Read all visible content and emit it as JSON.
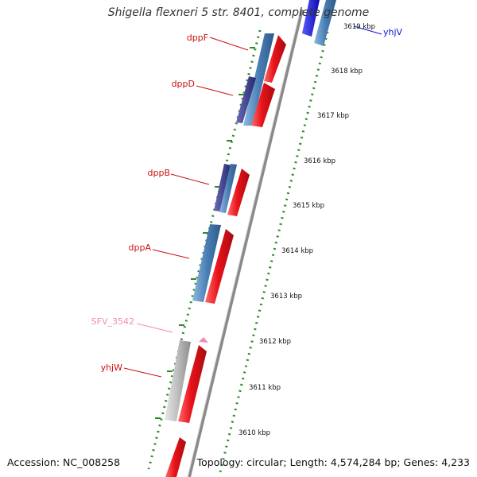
{
  "title": "Shigella flexneri 5 str. 8401, complete genome",
  "footer": {
    "accession": "Accession: NC_008258",
    "summary": "Topology: circular; Length: 4,574,284 bp; Genes: 4,233"
  },
  "colors": {
    "forward_gene": "#e8121a",
    "reverse_gene": "#4a7fb5",
    "reverse_gene_dark": "#3a3a8c",
    "yhjV_gene": "#1414e0",
    "pseudo_gene": "#b8b8b8",
    "pseudo_label": "#f08cb8",
    "gene_label": "#cc1111",
    "yhjV_label": "#1111cc",
    "tick_dots": "#2a8a2a",
    "backbone": "#8a8a8a"
  },
  "ruler": {
    "unit": "kbp",
    "ticks": [
      "3610 kbp",
      "3611 kbp",
      "3612 kbp",
      "3613 kbp",
      "3614 kbp",
      "3615 kbp",
      "3616 kbp",
      "3617 kbp",
      "3618 kbp",
      "3619 kbp"
    ]
  },
  "gene_labels": [
    {
      "id": "dppF",
      "text": "dppF"
    },
    {
      "id": "dppD",
      "text": "dppD"
    },
    {
      "id": "dppB",
      "text": "dppB"
    },
    {
      "id": "dppA",
      "text": "dppA"
    },
    {
      "id": "SFV_3542",
      "text": "SFV_3542"
    },
    {
      "id": "yhjW",
      "text": "yhjW"
    },
    {
      "id": "yhjV",
      "text": "yhjV"
    }
  ]
}
